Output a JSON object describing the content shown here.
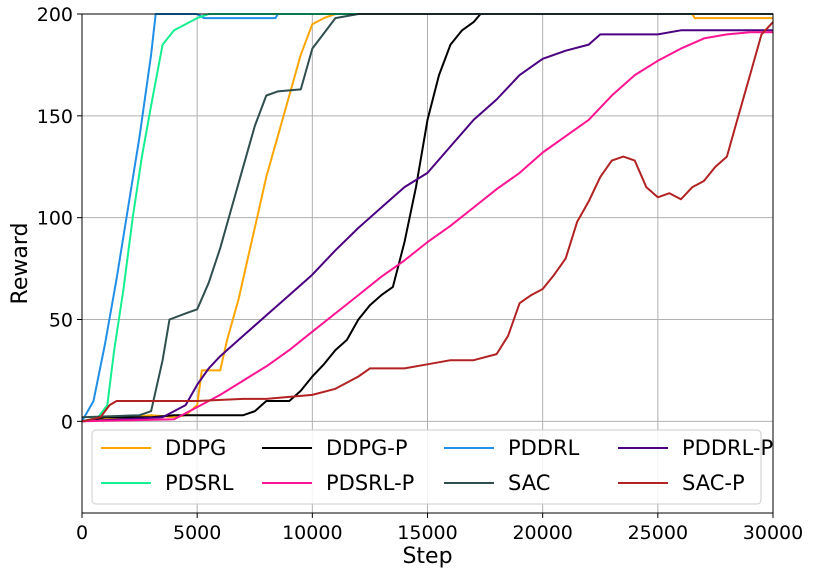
{
  "chart_data": {
    "type": "line",
    "title": "",
    "xlabel": "Step",
    "ylabel": "Reward",
    "xlim": [
      0,
      30000
    ],
    "ylim": [
      -45,
      200
    ],
    "xticks": [
      0,
      5000,
      10000,
      15000,
      20000,
      25000,
      30000
    ],
    "xtick_labels": [
      "0",
      "5000",
      "10000",
      "15000",
      "20000",
      "25000",
      "30000"
    ],
    "yticks": [
      0,
      50,
      100,
      150,
      200
    ],
    "ytick_labels": [
      "0",
      "50",
      "100",
      "150",
      "200"
    ],
    "grid": true,
    "legend": {
      "placement": "lower center",
      "columns": 4
    },
    "series": [
      {
        "name": "DDPG",
        "color": "#ffa500",
        "points": [
          [
            0,
            0
          ],
          [
            1000,
            1
          ],
          [
            2000,
            2
          ],
          [
            3000,
            3
          ],
          [
            4000,
            2
          ],
          [
            4500,
            3
          ],
          [
            5000,
            8
          ],
          [
            5200,
            25
          ],
          [
            6000,
            25
          ],
          [
            6300,
            40
          ],
          [
            6800,
            60
          ],
          [
            7200,
            80
          ],
          [
            7600,
            100
          ],
          [
            8000,
            120
          ],
          [
            8500,
            140
          ],
          [
            9000,
            160
          ],
          [
            9500,
            180
          ],
          [
            10000,
            195
          ],
          [
            10500,
            198
          ],
          [
            11000,
            200
          ],
          [
            26500,
            200
          ],
          [
            26600,
            198
          ],
          [
            30000,
            198
          ]
        ]
      },
      {
        "name": "DDPG-P",
        "color": "#000000",
        "points": [
          [
            0,
            0
          ],
          [
            1000,
            2
          ],
          [
            2000,
            2
          ],
          [
            3000,
            2
          ],
          [
            4000,
            3
          ],
          [
            5000,
            3
          ],
          [
            6000,
            3
          ],
          [
            7000,
            3
          ],
          [
            7500,
            5
          ],
          [
            8000,
            10
          ],
          [
            9000,
            10
          ],
          [
            9500,
            15
          ],
          [
            10000,
            22
          ],
          [
            10500,
            28
          ],
          [
            11000,
            35
          ],
          [
            11500,
            40
          ],
          [
            12000,
            50
          ],
          [
            12500,
            57
          ],
          [
            13000,
            62
          ],
          [
            13500,
            66
          ],
          [
            14000,
            88
          ],
          [
            14500,
            115
          ],
          [
            15000,
            148
          ],
          [
            15500,
            170
          ],
          [
            16000,
            185
          ],
          [
            16500,
            192
          ],
          [
            17000,
            196
          ],
          [
            17300,
            200
          ],
          [
            30000,
            200
          ]
        ]
      },
      {
        "name": "PDDRL",
        "color": "#1f8fe8",
        "points": [
          [
            0,
            0
          ],
          [
            500,
            10
          ],
          [
            1000,
            38
          ],
          [
            1500,
            70
          ],
          [
            2000,
            105
          ],
          [
            2500,
            140
          ],
          [
            3000,
            180
          ],
          [
            3200,
            200
          ],
          [
            5000,
            200
          ],
          [
            5300,
            198
          ],
          [
            8400,
            198
          ],
          [
            8500,
            200
          ],
          [
            30000,
            200
          ]
        ]
      },
      {
        "name": "PDDRL-P",
        "color": "#4b0082",
        "points": [
          [
            0,
            0
          ],
          [
            3500,
            2
          ],
          [
            4500,
            8
          ],
          [
            5000,
            18
          ],
          [
            5500,
            26
          ],
          [
            6000,
            32
          ],
          [
            7000,
            42
          ],
          [
            8000,
            52
          ],
          [
            9000,
            62
          ],
          [
            10000,
            72
          ],
          [
            11000,
            84
          ],
          [
            12000,
            95
          ],
          [
            13000,
            105
          ],
          [
            14000,
            115
          ],
          [
            15000,
            122
          ],
          [
            16000,
            135
          ],
          [
            17000,
            148
          ],
          [
            18000,
            158
          ],
          [
            19000,
            170
          ],
          [
            20000,
            178
          ],
          [
            21000,
            182
          ],
          [
            22000,
            185
          ],
          [
            22500,
            190
          ],
          [
            25000,
            190
          ],
          [
            26000,
            192
          ],
          [
            30000,
            192
          ]
        ]
      },
      {
        "name": "PDSRL",
        "color": "#14ef8f",
        "points": [
          [
            0,
            0
          ],
          [
            700,
            2
          ],
          [
            1100,
            8
          ],
          [
            1400,
            35
          ],
          [
            1800,
            65
          ],
          [
            2200,
            100
          ],
          [
            2600,
            130
          ],
          [
            3000,
            155
          ],
          [
            3500,
            185
          ],
          [
            4000,
            192
          ],
          [
            4500,
            195
          ],
          [
            5000,
            198
          ],
          [
            5500,
            200
          ],
          [
            30000,
            200
          ]
        ]
      },
      {
        "name": "PDSRL-P",
        "color": "#ff1493",
        "points": [
          [
            0,
            0
          ],
          [
            4000,
            1
          ],
          [
            5000,
            7
          ],
          [
            6000,
            13
          ],
          [
            7000,
            20
          ],
          [
            8000,
            27
          ],
          [
            9000,
            35
          ],
          [
            10000,
            44
          ],
          [
            11000,
            53
          ],
          [
            12000,
            62
          ],
          [
            13000,
            71
          ],
          [
            14000,
            79
          ],
          [
            15000,
            88
          ],
          [
            16000,
            96
          ],
          [
            17000,
            105
          ],
          [
            18000,
            114
          ],
          [
            19000,
            122
          ],
          [
            20000,
            132
          ],
          [
            21000,
            140
          ],
          [
            22000,
            148
          ],
          [
            23000,
            160
          ],
          [
            24000,
            170
          ],
          [
            25000,
            177
          ],
          [
            26000,
            183
          ],
          [
            27000,
            188
          ],
          [
            28000,
            190
          ],
          [
            29000,
            191
          ],
          [
            30000,
            191
          ]
        ]
      },
      {
        "name": "SAC",
        "color": "#2f4f4f",
        "points": [
          [
            0,
            2
          ],
          [
            2500,
            3
          ],
          [
            3000,
            5
          ],
          [
            3500,
            30
          ],
          [
            3800,
            50
          ],
          [
            4500,
            53
          ],
          [
            5000,
            55
          ],
          [
            5500,
            68
          ],
          [
            6000,
            85
          ],
          [
            6500,
            105
          ],
          [
            7000,
            125
          ],
          [
            7500,
            145
          ],
          [
            8000,
            160
          ],
          [
            8500,
            162
          ],
          [
            9500,
            163
          ],
          [
            10000,
            183
          ],
          [
            11000,
            198
          ],
          [
            12000,
            200
          ],
          [
            30000,
            200
          ]
        ]
      },
      {
        "name": "SAC-P",
        "color": "#b22222",
        "points": [
          [
            0,
            0
          ],
          [
            800,
            2
          ],
          [
            1200,
            8
          ],
          [
            1500,
            10
          ],
          [
            3000,
            10
          ],
          [
            5000,
            10
          ],
          [
            7000,
            11
          ],
          [
            8000,
            11
          ],
          [
            9000,
            12
          ],
          [
            10000,
            13
          ],
          [
            11000,
            16
          ],
          [
            12000,
            22
          ],
          [
            12500,
            26
          ],
          [
            14000,
            26
          ],
          [
            15000,
            28
          ],
          [
            16000,
            30
          ],
          [
            17000,
            30
          ],
          [
            18000,
            33
          ],
          [
            18500,
            42
          ],
          [
            19000,
            58
          ],
          [
            19500,
            62
          ],
          [
            20000,
            65
          ],
          [
            20500,
            72
          ],
          [
            21000,
            80
          ],
          [
            21500,
            98
          ],
          [
            22000,
            108
          ],
          [
            22500,
            120
          ],
          [
            23000,
            128
          ],
          [
            23500,
            130
          ],
          [
            24000,
            128
          ],
          [
            24500,
            115
          ],
          [
            25000,
            110
          ],
          [
            25500,
            112
          ],
          [
            26000,
            109
          ],
          [
            26500,
            115
          ],
          [
            27000,
            118
          ],
          [
            27500,
            125
          ],
          [
            28000,
            130
          ],
          [
            28500,
            150
          ],
          [
            29000,
            170
          ],
          [
            29500,
            190
          ],
          [
            30000,
            196
          ]
        ]
      }
    ]
  }
}
